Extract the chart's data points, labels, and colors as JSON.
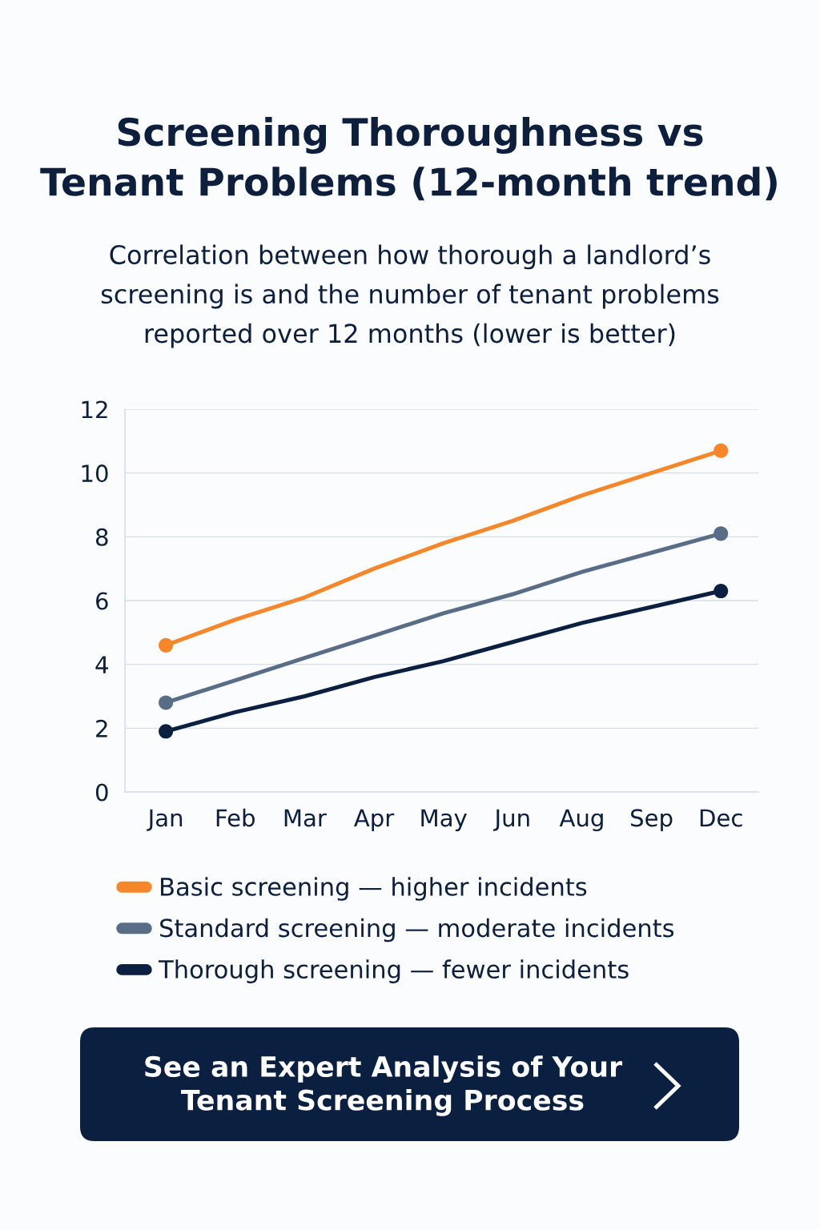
{
  "chart_data": {
    "type": "line",
    "title": "Screening Thoroughness vs Tenant Problems (12-month trend)",
    "subtitle": "Correlation between how thorough a landlord’s screening is and the number of tenant problems reported over 12 months (lower is better)",
    "categories": [
      "Jan",
      "Feb",
      "Mar",
      "Apr",
      "May",
      "Jun",
      "Aug",
      "Sep",
      "Dec"
    ],
    "series": [
      {
        "name": "Basic screening — higher incidents",
        "color": "#f5862a",
        "values": [
          4.6,
          5.4,
          6.1,
          7.0,
          7.8,
          8.5,
          9.3,
          10.0,
          10.7
        ]
      },
      {
        "name": "Standard screening — moderate incidents",
        "color": "#5a6d87",
        "values": [
          2.8,
          3.5,
          4.2,
          4.9,
          5.6,
          6.2,
          6.9,
          7.5,
          8.1
        ]
      },
      {
        "name": "Thorough screening — fewer incidents",
        "color": "#0b1f40",
        "values": [
          1.9,
          2.5,
          3.0,
          3.6,
          4.1,
          4.7,
          5.3,
          5.8,
          6.3
        ]
      },
      {
        "type": "scatter",
        "color": "#f5862a",
        "values": [
          4.6,
          null,
          null,
          null,
          null,
          null,
          null,
          null,
          10.7
        ]
      },
      {
        "type": "scatter",
        "color": "#5a6d87",
        "values": [
          2.8,
          null,
          null,
          null,
          null,
          null,
          null,
          null,
          8.1
        ]
      },
      {
        "type": "scatter",
        "color": "#0b1f40",
        "values": [
          1.9,
          null,
          null,
          null,
          null,
          null,
          null,
          null,
          6.3
        ]
      }
    ],
    "ylim": [
      0,
      12
    ],
    "yticks": [
      0,
      2,
      4,
      6,
      8,
      10,
      12
    ],
    "grid": "y",
    "legend": "bottom",
    "line_style": "solid",
    "annotations": [
      "See an Expert Analysis of Your Tenant Screening Process"
    ]
  }
}
